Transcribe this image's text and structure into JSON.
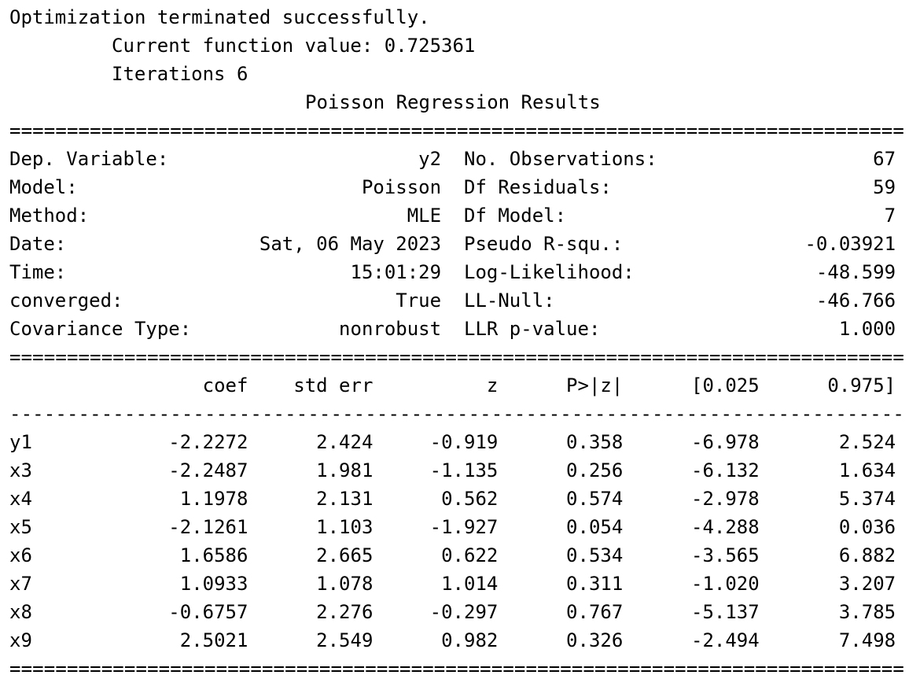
{
  "header": {
    "status": "Optimization terminated successfully.",
    "function_value": "Current function value: 0.725361",
    "iterations": "Iterations 6",
    "title": "Poisson Regression Results"
  },
  "separator_double": "==============================================================================",
  "separator_single": "------------------------------------------------------------------------------",
  "summary_rows": [
    {
      "left_label": "Dep. Variable:",
      "left_value": "y2",
      "right_label": "No. Observations:",
      "right_value": "67"
    },
    {
      "left_label": "Model:",
      "left_value": "Poisson",
      "right_label": "Df Residuals:",
      "right_value": "59"
    },
    {
      "left_label": "Method:",
      "left_value": "MLE",
      "right_label": "Df Model:",
      "right_value": "7"
    },
    {
      "left_label": "Date:",
      "left_value": "Sat, 06 May 2023",
      "right_label": "Pseudo R-squ.:",
      "right_value": "-0.03921"
    },
    {
      "left_label": "Time:",
      "left_value": "15:01:29",
      "right_label": "Log-Likelihood:",
      "right_value": "-48.599"
    },
    {
      "left_label": "converged:",
      "left_value": "True",
      "right_label": "LL-Null:",
      "right_value": "-46.766"
    },
    {
      "left_label": "Covariance Type:",
      "left_value": "nonrobust",
      "right_label": "LLR p-value:",
      "right_value": "1.000"
    }
  ],
  "coef_table": {
    "columns": [
      "coef",
      "std err",
      "z",
      "P>|z|",
      "[0.025",
      "0.975]"
    ],
    "rows": [
      {
        "name": "y1",
        "values": [
          "-2.2272",
          "2.424",
          "-0.919",
          "0.358",
          "-6.978",
          "2.524"
        ]
      },
      {
        "name": "x3",
        "values": [
          "-2.2487",
          "1.981",
          "-1.135",
          "0.256",
          "-6.132",
          "1.634"
        ]
      },
      {
        "name": "x4",
        "values": [
          "1.1978",
          "2.131",
          "0.562",
          "0.574",
          "-2.978",
          "5.374"
        ]
      },
      {
        "name": "x5",
        "values": [
          "-2.1261",
          "1.103",
          "-1.927",
          "0.054",
          "-4.288",
          "0.036"
        ]
      },
      {
        "name": "x6",
        "values": [
          "1.6586",
          "2.665",
          "0.622",
          "0.534",
          "-3.565",
          "6.882"
        ]
      },
      {
        "name": "x7",
        "values": [
          "1.0933",
          "1.078",
          "1.014",
          "0.311",
          "-1.020",
          "3.207"
        ]
      },
      {
        "name": "x8",
        "values": [
          "-0.6757",
          "2.276",
          "-0.297",
          "0.767",
          "-5.137",
          "3.785"
        ]
      },
      {
        "name": "x9",
        "values": [
          "2.5021",
          "2.549",
          "0.982",
          "0.326",
          "-2.494",
          "7.498"
        ]
      }
    ]
  }
}
